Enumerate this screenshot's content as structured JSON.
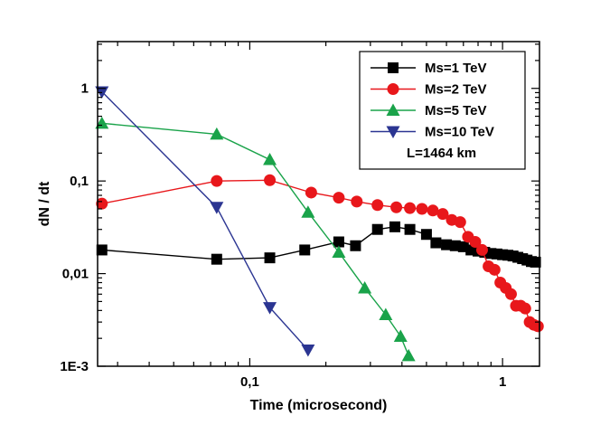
{
  "chart_data": {
    "type": "line",
    "title": "",
    "xlabel": "Time (microsecond)",
    "ylabel": "dN / dt",
    "xscale": "log",
    "yscale": "log",
    "xlim": [
      0.025,
      1.4
    ],
    "ylim": [
      0.001,
      3.2
    ],
    "x_ticks": [
      {
        "value": 0.1,
        "label": "0,1"
      },
      {
        "value": 1,
        "label": "1"
      }
    ],
    "y_ticks": [
      {
        "value": 0.001,
        "label": "1E-3"
      },
      {
        "value": 0.01,
        "label": "0,01"
      },
      {
        "value": 0.1,
        "label": "0,1"
      },
      {
        "value": 1,
        "label": "1"
      }
    ],
    "legend_position": "top-right",
    "legend_note": "L=1464 km",
    "series": [
      {
        "name": "Ms=1  TeV",
        "color": "#000000",
        "marker": "square",
        "x": [
          0.026,
          0.074,
          0.12,
          0.165,
          0.225,
          0.262,
          0.32,
          0.375,
          0.43,
          0.5,
          0.545,
          0.6,
          0.65,
          0.7,
          0.75,
          0.8,
          0.85,
          0.9,
          0.95,
          1.0,
          1.05,
          1.1,
          1.15,
          1.2,
          1.25,
          1.3,
          1.35
        ],
        "y": [
          0.018,
          0.0143,
          0.0148,
          0.018,
          0.022,
          0.02,
          0.03,
          0.032,
          0.03,
          0.0265,
          0.0215,
          0.0205,
          0.02,
          0.0195,
          0.018,
          0.0175,
          0.017,
          0.0165,
          0.0163,
          0.016,
          0.0158,
          0.0155,
          0.015,
          0.0145,
          0.014,
          0.0135,
          0.0133
        ]
      },
      {
        "name": "Ms=2  TeV",
        "color": "#e8171b",
        "marker": "circle",
        "x": [
          0.026,
          0.074,
          0.12,
          0.175,
          0.225,
          0.265,
          0.32,
          0.38,
          0.43,
          0.48,
          0.53,
          0.58,
          0.63,
          0.68,
          0.73,
          0.78,
          0.83,
          0.88,
          0.93,
          0.98,
          1.03,
          1.08,
          1.13,
          1.18,
          1.23,
          1.28,
          1.33,
          1.38
        ],
        "y": [
          0.057,
          0.1,
          0.102,
          0.075,
          0.066,
          0.06,
          0.055,
          0.052,
          0.051,
          0.05,
          0.048,
          0.044,
          0.038,
          0.036,
          0.025,
          0.022,
          0.018,
          0.012,
          0.011,
          0.008,
          0.007,
          0.006,
          0.0045,
          0.0045,
          0.0042,
          0.003,
          0.0028,
          0.0027
        ]
      },
      {
        "name": "Ms=5  TeV",
        "color": "#1aa34a",
        "marker": "triangle-up",
        "x": [
          0.026,
          0.074,
          0.12,
          0.17,
          0.225,
          0.285,
          0.345,
          0.395,
          0.425
        ],
        "y": [
          0.42,
          0.32,
          0.17,
          0.046,
          0.017,
          0.007,
          0.0036,
          0.0021,
          0.0013
        ]
      },
      {
        "name": "Ms=10 TeV",
        "color": "#2b3592",
        "marker": "triangle-down",
        "x": [
          0.026,
          0.074,
          0.12,
          0.17
        ],
        "y": [
          0.92,
          0.052,
          0.0043,
          0.0015
        ]
      }
    ]
  }
}
